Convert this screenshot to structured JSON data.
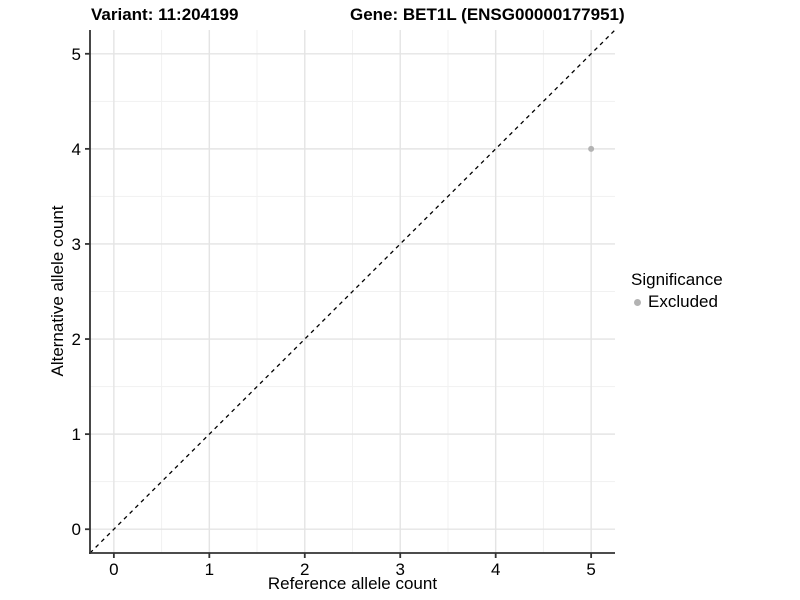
{
  "chart_data": {
    "type": "scatter",
    "title_left": "Variant: 11:204199",
    "title_right": "Gene: BET1L (ENSG00000177951)",
    "xlabel": "Reference allele count",
    "ylabel": "Alternative allele count",
    "xlim": [
      -0.25,
      5.25
    ],
    "ylim": [
      -0.25,
      5.25
    ],
    "x_ticks": [
      0,
      1,
      2,
      3,
      4,
      5
    ],
    "y_ticks": [
      0,
      1,
      2,
      3,
      4,
      5
    ],
    "x_minor": [
      0.5,
      1.5,
      2.5,
      3.5,
      4.5
    ],
    "y_minor": [
      0.5,
      1.5,
      2.5,
      3.5,
      4.5
    ],
    "grid": true,
    "reference_line": {
      "type": "abline",
      "slope": 1,
      "intercept": 0,
      "style": "dashed",
      "color": "#000000"
    },
    "points": [
      {
        "x": 5,
        "y": 4,
        "series": "Excluded"
      }
    ],
    "series_colors": {
      "Excluded": "#b3b3b3"
    },
    "legend": {
      "title": "Significance",
      "position": "right",
      "entries": [
        {
          "label": "Excluded",
          "color": "#b3b3b3"
        }
      ]
    }
  },
  "style": {
    "grid_major_color": "#e4e4e4",
    "grid_minor_color": "#f1f1f1",
    "axis_color": "#333333",
    "text_color": "#000000",
    "background": "#ffffff"
  }
}
